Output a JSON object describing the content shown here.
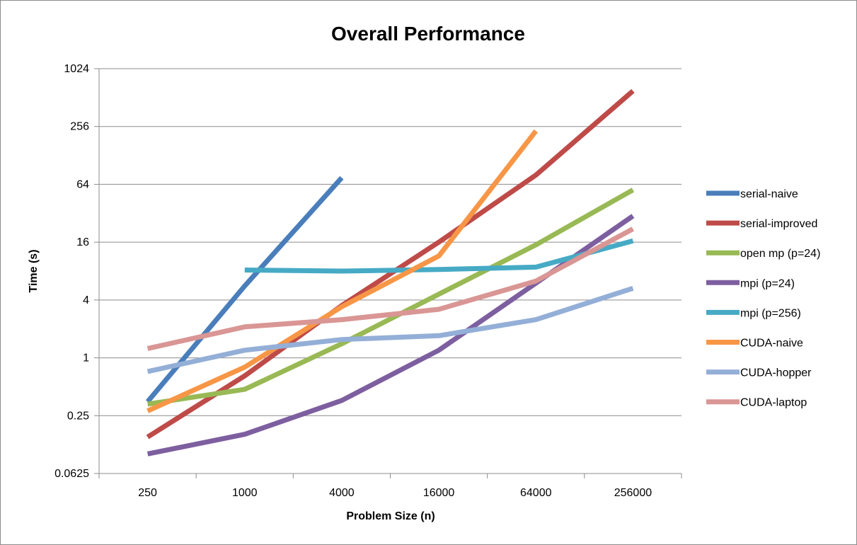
{
  "chart_data": {
    "type": "line",
    "title": "Overall Performance",
    "xlabel": "Problem Size (n)",
    "ylabel": "Time (s)",
    "y_scale": "log2",
    "ylim": [
      0.0625,
      1024
    ],
    "categories": [
      "250",
      "1000",
      "4000",
      "16000",
      "64000",
      "256000"
    ],
    "y_ticks": [
      {
        "value": 0.0625,
        "label": "0.0625"
      },
      {
        "value": 0.25,
        "label": "0.25"
      },
      {
        "value": 1,
        "label": "1"
      },
      {
        "value": 4,
        "label": "4"
      },
      {
        "value": 16,
        "label": "16"
      },
      {
        "value": 64,
        "label": "64"
      },
      {
        "value": 256,
        "label": "256"
      },
      {
        "value": 1024,
        "label": "1024"
      }
    ],
    "grid": "horizontal",
    "legend_position": "right",
    "series": [
      {
        "name": "serial-naive",
        "color": "#4a7ebb",
        "values": [
          0.35,
          5.6,
          75,
          null,
          null,
          null
        ]
      },
      {
        "name": "serial-improved",
        "color": "#be4b48",
        "values": [
          0.15,
          0.65,
          3.5,
          16,
          80,
          600
        ]
      },
      {
        "name": "open mp (p=24)",
        "color": "#98b954",
        "values": [
          0.33,
          0.47,
          1.4,
          4.6,
          15,
          56
        ]
      },
      {
        "name": "mpi (p=24)",
        "color": "#7d5fa0",
        "values": [
          0.1,
          0.16,
          0.36,
          1.2,
          6,
          30
        ]
      },
      {
        "name": "mpi (p=256)",
        "color": "#46aac5",
        "values": [
          null,
          8.2,
          8,
          8.3,
          8.8,
          16.5
        ]
      },
      {
        "name": "CUDA-naive",
        "color": "#f79646",
        "values": [
          0.28,
          0.8,
          3.4,
          11.5,
          230,
          null
        ]
      },
      {
        "name": "CUDA-hopper",
        "color": "#94afd7",
        "values": [
          0.72,
          1.2,
          1.55,
          1.7,
          2.5,
          5.3
        ]
      },
      {
        "name": "CUDA-laptop",
        "color": "#d99694",
        "values": [
          1.25,
          2.1,
          2.5,
          3.2,
          6.3,
          22
        ]
      }
    ]
  }
}
